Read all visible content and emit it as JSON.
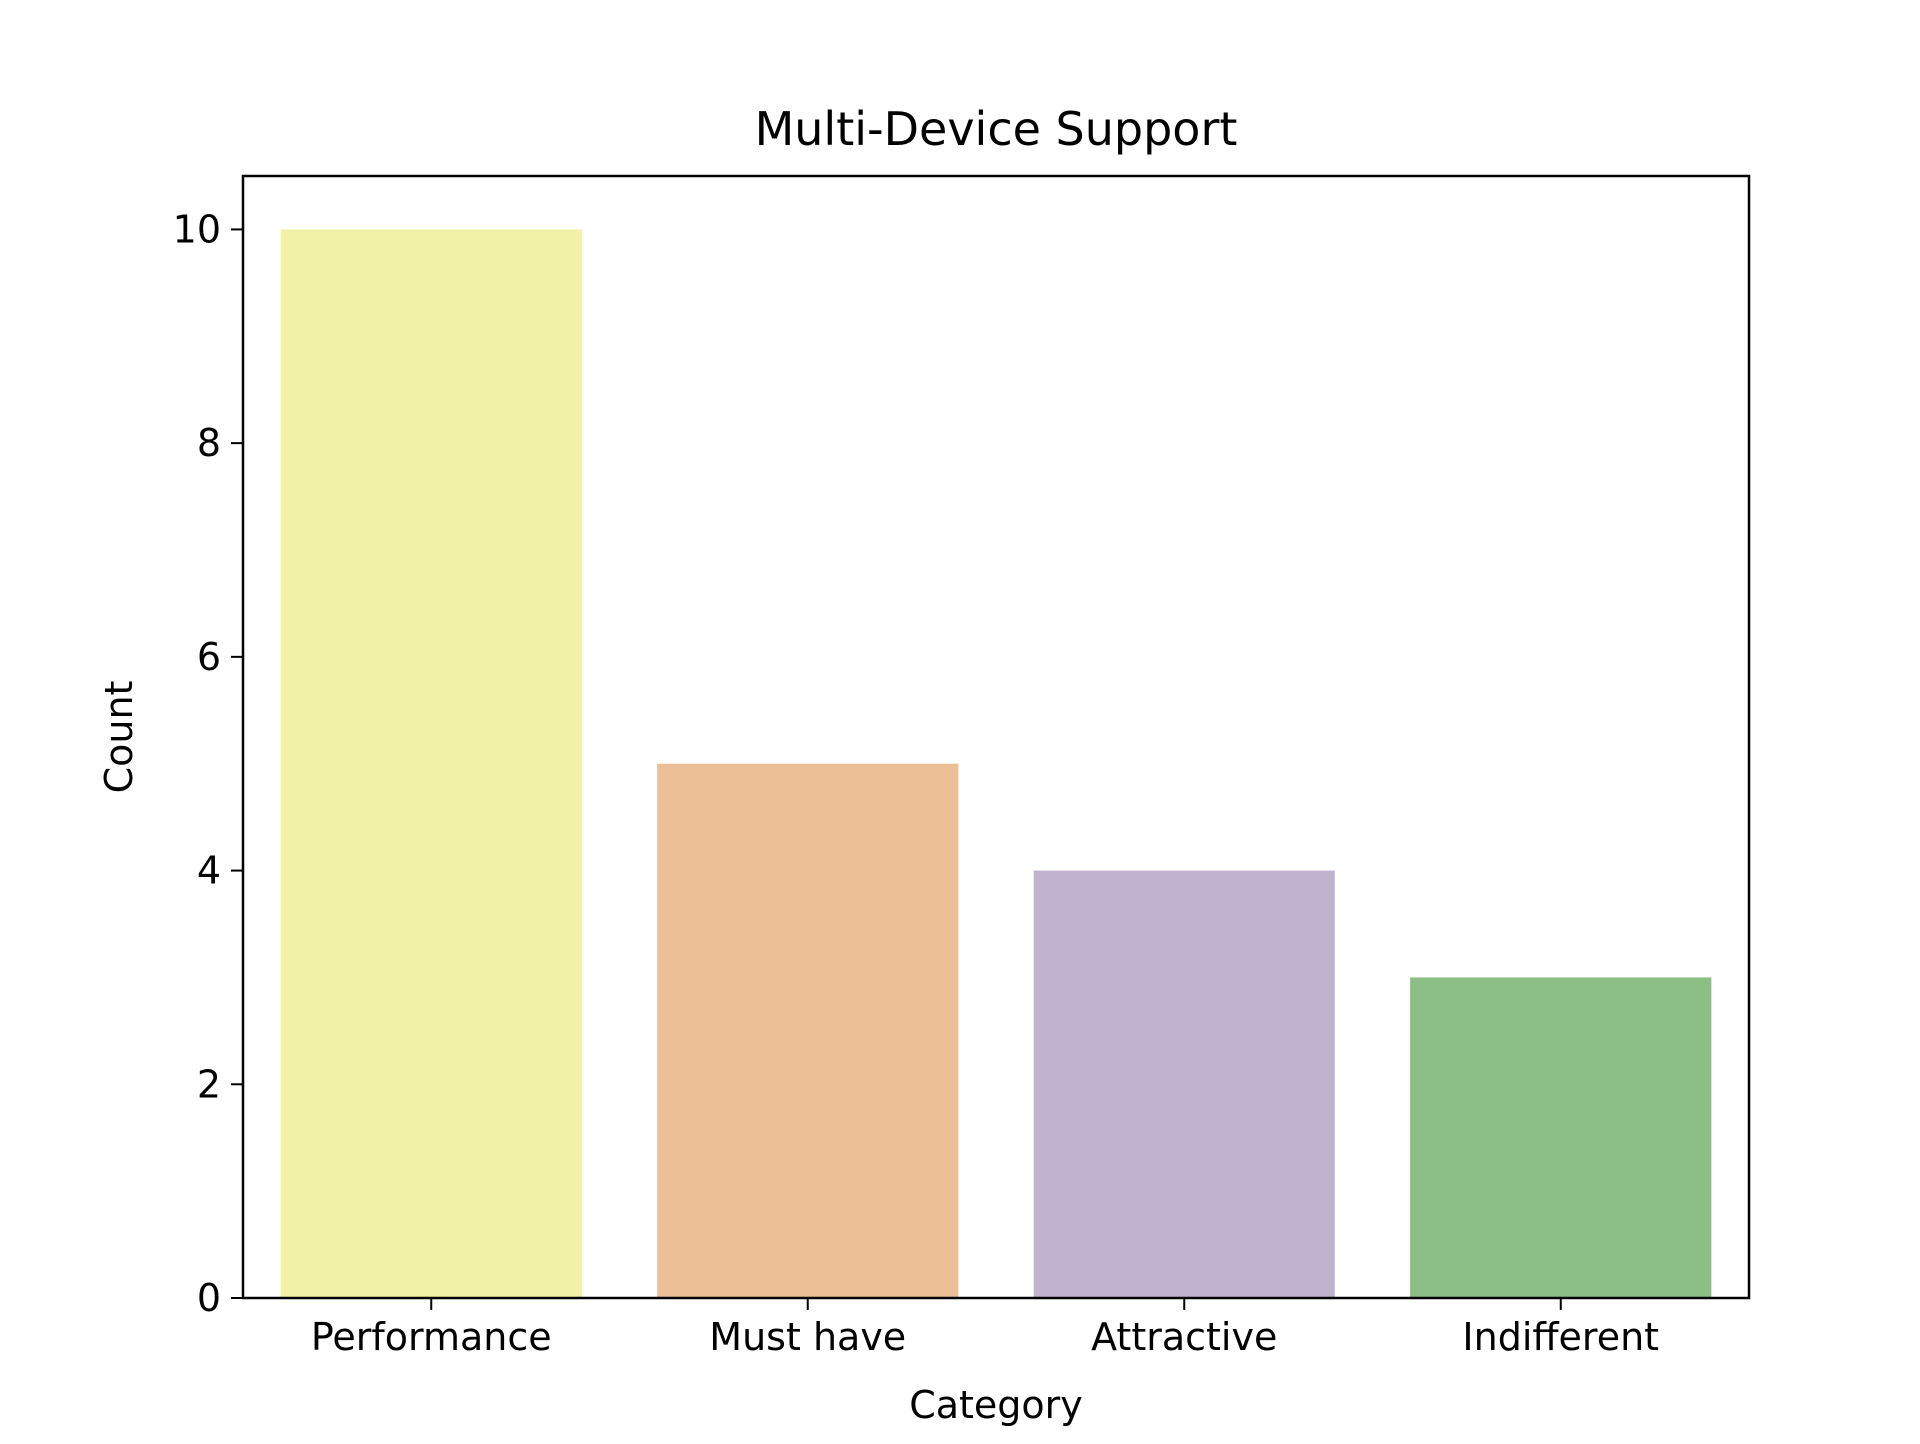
{
  "chart_data": {
    "type": "bar",
    "title": "Multi-Device Support",
    "xlabel": "Category",
    "ylabel": "Count",
    "categories": [
      "Performance",
      "Must have",
      "Attractive",
      "Indifferent"
    ],
    "values": [
      10,
      5,
      4,
      3
    ],
    "colors": [
      "#f1f2a6",
      "#ecbf96",
      "#c1b2cf",
      "#8bbf86"
    ],
    "ylim": [
      0,
      10.5
    ],
    "yticks": [
      0,
      2,
      4,
      6,
      8,
      10
    ],
    "ytick_labels": [
      "0",
      "2",
      "4",
      "6",
      "8",
      "10"
    ],
    "grid": false,
    "legend": "none"
  }
}
